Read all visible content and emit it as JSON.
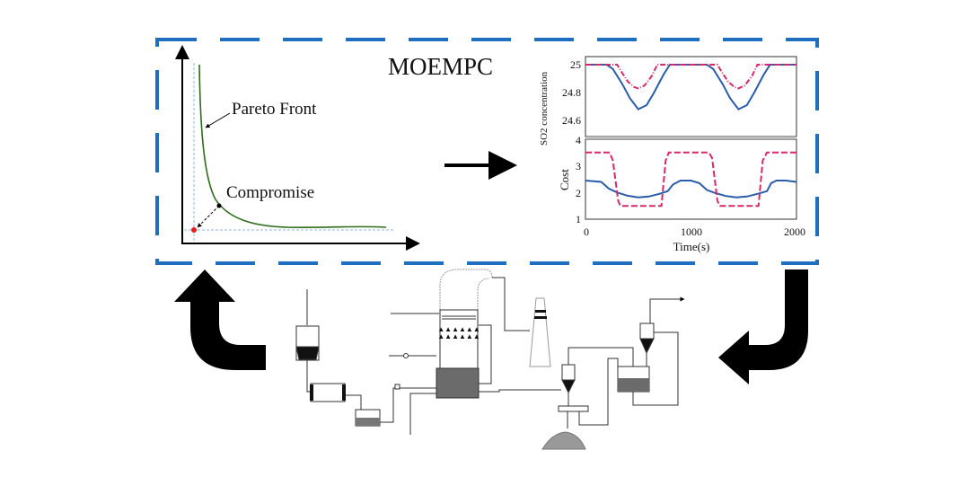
{
  "title": "MOEMPC",
  "pareto": {
    "curve_label": "Pareto  Front",
    "point_label": "Compromise"
  },
  "colors": {
    "frame": "#1f6fc0",
    "series_blue": "#2a5caa",
    "series_red": "#d8286a",
    "pareto_curve": "#2e6b1c",
    "compromise_point": "#e02020"
  },
  "chart_data": [
    {
      "type": "line",
      "ylabel": "SO2 concentration",
      "ylim": [
        24.55,
        25.05
      ],
      "xlim": [
        0,
        2000
      ],
      "yticks": [
        "25",
        "24.8",
        "24.6"
      ],
      "series": [
        {
          "style": "solid",
          "color": "#2a5caa",
          "x": [
            0,
            200,
            260,
            350,
            420,
            500,
            580,
            650,
            740,
            800,
            1150,
            1210,
            1300,
            1370,
            1450,
            1530,
            1600,
            1690,
            1750,
            2000
          ],
          "y": [
            25,
            25,
            24.97,
            24.86,
            24.76,
            24.68,
            24.71,
            24.8,
            24.93,
            25,
            25,
            24.97,
            24.86,
            24.76,
            24.68,
            24.71,
            24.8,
            24.93,
            25,
            25
          ]
        },
        {
          "style": "dash-dot",
          "color": "#d8286a",
          "x": [
            0,
            300,
            340,
            400,
            460,
            500,
            560,
            630,
            680,
            1250,
            1290,
            1350,
            1410,
            1450,
            1510,
            1580,
            1630,
            2000
          ],
          "y": [
            25,
            25,
            24.95,
            24.88,
            24.84,
            24.83,
            24.85,
            24.92,
            25,
            25,
            24.95,
            24.88,
            24.84,
            24.83,
            24.85,
            24.92,
            25,
            25
          ]
        }
      ]
    },
    {
      "type": "line",
      "ylabel": "Cost",
      "xlabel": "Time(s)",
      "ylim": [
        1,
        4
      ],
      "xlim": [
        0,
        2000
      ],
      "yticks": [
        "4",
        "3",
        "2",
        "1"
      ],
      "xticks": [
        "0",
        "1000",
        "2000"
      ],
      "series": [
        {
          "style": "solid",
          "color": "#2a5caa",
          "x": [
            0,
            150,
            220,
            300,
            400,
            500,
            600,
            700,
            780,
            830,
            900,
            1000,
            1080,
            1150,
            1230,
            1330,
            1430,
            1530,
            1630,
            1720,
            1760,
            1810,
            1900,
            2000
          ],
          "y": [
            2.45,
            2.4,
            2.15,
            2.0,
            1.88,
            1.82,
            1.85,
            1.95,
            2.05,
            2.3,
            2.45,
            2.45,
            2.35,
            2.1,
            1.98,
            1.87,
            1.82,
            1.85,
            1.95,
            2.05,
            2.35,
            2.45,
            2.45,
            2.4
          ]
        },
        {
          "style": "dashed",
          "color": "#d8286a",
          "x": [
            0,
            230,
            260,
            310,
            330,
            720,
            760,
            790,
            1170,
            1200,
            1250,
            1270,
            1640,
            1680,
            1720,
            2000
          ],
          "y": [
            3.5,
            3.5,
            3.2,
            1.7,
            1.5,
            1.5,
            3.2,
            3.5,
            3.5,
            3.3,
            1.7,
            1.5,
            1.5,
            3.2,
            3.5,
            3.5
          ]
        }
      ]
    }
  ]
}
